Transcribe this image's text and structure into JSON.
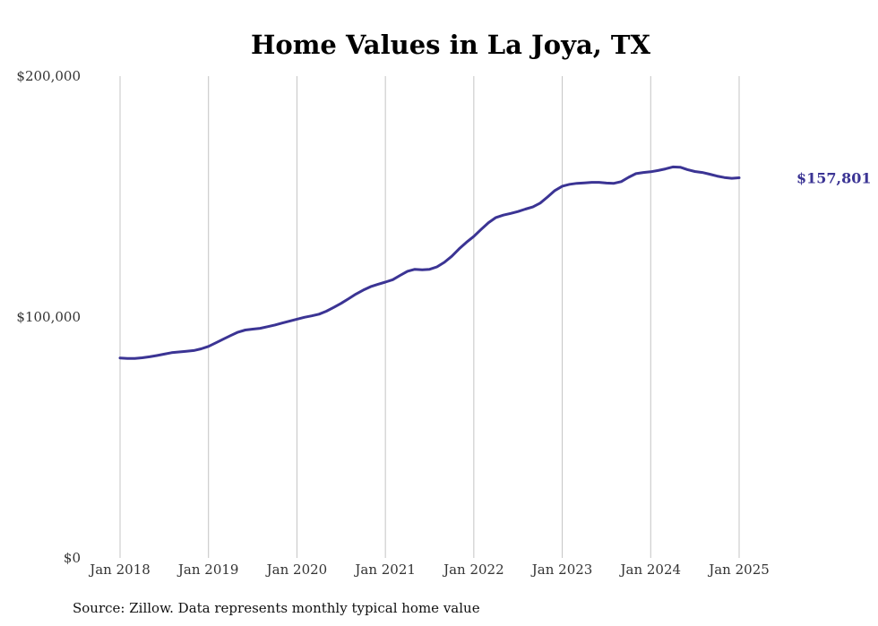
{
  "chart_data": {
    "type": "line",
    "title": "Home Values in La Joya, TX",
    "xlabel": "",
    "ylabel": "",
    "ylim": [
      0,
      200000
    ],
    "xlim": [
      "2018-01",
      "2025-07"
    ],
    "y_ticks": [
      {
        "value": 0,
        "label": "$0"
      },
      {
        "value": 100000,
        "label": "$100,000"
      },
      {
        "value": 200000,
        "label": "$200,000"
      }
    ],
    "x_ticks": [
      {
        "date": "2018-01",
        "label": "Jan 2018"
      },
      {
        "date": "2019-01",
        "label": "Jan 2019"
      },
      {
        "date": "2020-01",
        "label": "Jan 2020"
      },
      {
        "date": "2021-01",
        "label": "Jan 2021"
      },
      {
        "date": "2022-01",
        "label": "Jan 2022"
      },
      {
        "date": "2023-01",
        "label": "Jan 2023"
      },
      {
        "date": "2024-01",
        "label": "Jan 2024"
      },
      {
        "date": "2025-01",
        "label": "Jan 2025"
      }
    ],
    "grid": "vertical",
    "end_label": "$157,801",
    "series": [
      {
        "color": "#3b3494",
        "points": [
          [
            "2018-01",
            83000
          ],
          [
            "2018-02",
            82800
          ],
          [
            "2018-03",
            82800
          ],
          [
            "2018-04",
            83100
          ],
          [
            "2018-05",
            83500
          ],
          [
            "2018-06",
            84000
          ],
          [
            "2018-07",
            84600
          ],
          [
            "2018-08",
            85200
          ],
          [
            "2018-09",
            85500
          ],
          [
            "2018-10",
            85800
          ],
          [
            "2018-11",
            86100
          ],
          [
            "2018-12",
            86800
          ],
          [
            "2019-01",
            87800
          ],
          [
            "2019-02",
            89300
          ],
          [
            "2019-03",
            90800
          ],
          [
            "2019-04",
            92300
          ],
          [
            "2019-05",
            93700
          ],
          [
            "2019-06",
            94600
          ],
          [
            "2019-07",
            95000
          ],
          [
            "2019-08",
            95300
          ],
          [
            "2019-09",
            96000
          ],
          [
            "2019-10",
            96700
          ],
          [
            "2019-11",
            97500
          ],
          [
            "2019-12",
            98300
          ],
          [
            "2020-01",
            99100
          ],
          [
            "2020-02",
            99900
          ],
          [
            "2020-03",
            100500
          ],
          [
            "2020-04",
            101200
          ],
          [
            "2020-05",
            102400
          ],
          [
            "2020-06",
            104000
          ],
          [
            "2020-07",
            105700
          ],
          [
            "2020-08",
            107600
          ],
          [
            "2020-09",
            109500
          ],
          [
            "2020-10",
            111200
          ],
          [
            "2020-11",
            112600
          ],
          [
            "2020-12",
            113600
          ],
          [
            "2021-01",
            114500
          ],
          [
            "2021-02",
            115500
          ],
          [
            "2021-03",
            117300
          ],
          [
            "2021-04",
            119000
          ],
          [
            "2021-05",
            119800
          ],
          [
            "2021-06",
            119600
          ],
          [
            "2021-07",
            119800
          ],
          [
            "2021-08",
            120800
          ],
          [
            "2021-09",
            122700
          ],
          [
            "2021-10",
            125200
          ],
          [
            "2021-11",
            128300
          ],
          [
            "2021-12",
            131000
          ],
          [
            "2022-01",
            133500
          ],
          [
            "2022-02",
            136400
          ],
          [
            "2022-03",
            139200
          ],
          [
            "2022-04",
            141300
          ],
          [
            "2022-05",
            142300
          ],
          [
            "2022-06",
            143000
          ],
          [
            "2022-07",
            143800
          ],
          [
            "2022-08",
            144800
          ],
          [
            "2022-09",
            145700
          ],
          [
            "2022-10",
            147300
          ],
          [
            "2022-11",
            149800
          ],
          [
            "2022-12",
            152500
          ],
          [
            "2023-01",
            154300
          ],
          [
            "2023-02",
            155100
          ],
          [
            "2023-03",
            155500
          ],
          [
            "2023-04",
            155700
          ],
          [
            "2023-05",
            155900
          ],
          [
            "2023-06",
            155900
          ],
          [
            "2023-07",
            155600
          ],
          [
            "2023-08",
            155500
          ],
          [
            "2023-09",
            156200
          ],
          [
            "2023-10",
            158000
          ],
          [
            "2023-11",
            159500
          ],
          [
            "2023-12",
            160000
          ],
          [
            "2024-01",
            160300
          ],
          [
            "2024-02",
            160800
          ],
          [
            "2024-03",
            161500
          ],
          [
            "2024-04",
            162300
          ],
          [
            "2024-05",
            162200
          ],
          [
            "2024-06",
            161200
          ],
          [
            "2024-07",
            160400
          ],
          [
            "2024-08",
            160000
          ],
          [
            "2024-09",
            159300
          ],
          [
            "2024-10",
            158500
          ],
          [
            "2024-11",
            157900
          ],
          [
            "2024-12",
            157600
          ],
          [
            "2025-01",
            157801
          ]
        ]
      }
    ]
  },
  "footer": {
    "source": "Source: Zillow. Data represents monthly typical home value"
  }
}
